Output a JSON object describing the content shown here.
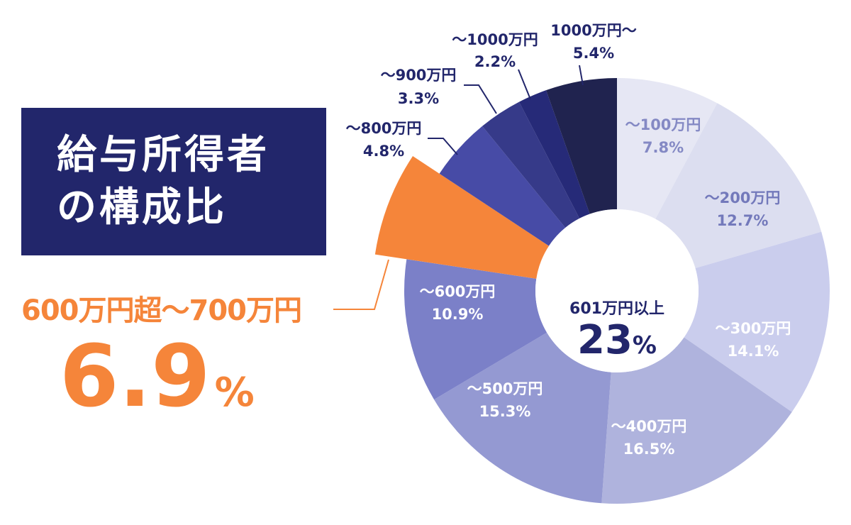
{
  "title": {
    "line1": "給与所得者",
    "line2": "の構成比"
  },
  "callout": {
    "label": "600万円超～700万円",
    "value": "6.9",
    "unit": "%"
  },
  "center": {
    "label": "601万円以上",
    "value": "23",
    "unit": "%"
  },
  "colors": {
    "title_bg": "#22266b",
    "highlight": "#f5853a",
    "leader_line": "#22266b"
  },
  "chart_data": {
    "type": "pie",
    "categories": [
      "～100万円",
      "～200万円",
      "～300万円",
      "～400万円",
      "～500万円",
      "～600万円",
      "600万円超～700万円",
      "～800万円",
      "～900万円",
      "～1000万円",
      "1000万円～"
    ],
    "values": [
      7.8,
      12.7,
      14.1,
      16.5,
      15.3,
      10.9,
      6.9,
      4.8,
      3.3,
      2.2,
      5.4
    ],
    "unit": "%",
    "slices": [
      {
        "label": "～100万円",
        "value_text": "7.8%",
        "value": 7.8,
        "color": "#e6e7f4",
        "text_color": "#8489c4"
      },
      {
        "label": "～200万円",
        "value_text": "12.7%",
        "value": 12.7,
        "color": "#dcdef0",
        "text_color": "#7379bb"
      },
      {
        "label": "～300万円",
        "value_text": "14.1%",
        "value": 14.1,
        "color": "#cacded",
        "text_color": "#ffffff"
      },
      {
        "label": "～400万円",
        "value_text": "16.5%",
        "value": 16.5,
        "color": "#afb3dd",
        "text_color": "#ffffff"
      },
      {
        "label": "～500万円",
        "value_text": "15.3%",
        "value": 15.3,
        "color": "#9499d2",
        "text_color": "#ffffff"
      },
      {
        "label": "～600万円",
        "value_text": "10.9%",
        "value": 10.9,
        "color": "#7b80c8",
        "text_color": "#ffffff"
      },
      {
        "label": "",
        "value_text": "",
        "value": 6.9,
        "color": "#f5853a",
        "text_color": "#ffffff",
        "highlight": true
      },
      {
        "label": "～800万円",
        "value_text": "4.8%",
        "value": 4.8,
        "color": "#474ba6",
        "text_color": "#22266b"
      },
      {
        "label": "～900万円",
        "value_text": "3.3%",
        "value": 3.3,
        "color": "#363a89",
        "text_color": "#22266b"
      },
      {
        "label": "～1000万円",
        "value_text": "2.2%",
        "value": 2.2,
        "color": "#262a78",
        "text_color": "#22266b"
      },
      {
        "label": "1000万円～",
        "value_text": "5.4%",
        "value": 5.4,
        "color": "#20234f",
        "text_color": "#22266b"
      }
    ]
  }
}
